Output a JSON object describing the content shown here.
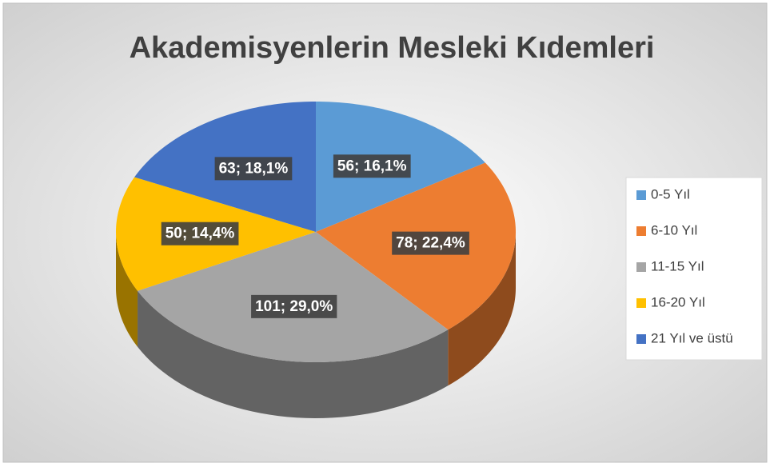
{
  "chart_data": {
    "type": "pie3d",
    "title": "Akademisyenlerin Mesleki Kıdemleri",
    "categories": [
      "0-5 Yıl",
      "6-10 Yıl",
      "11-15 Yıl",
      "16-20 Yıl",
      "21 Yıl ve üstü"
    ],
    "values": [
      56,
      78,
      101,
      50,
      63
    ],
    "value_labels": [
      "56; 16,1%",
      "78; 22,4%",
      "101; 29,0%",
      "50; 14,4%",
      "63; 18,1%"
    ],
    "colors": [
      "#5b9bd5",
      "#ed7d31",
      "#a5a5a5",
      "#ffc000",
      "#4472c4"
    ],
    "legend": "right"
  }
}
